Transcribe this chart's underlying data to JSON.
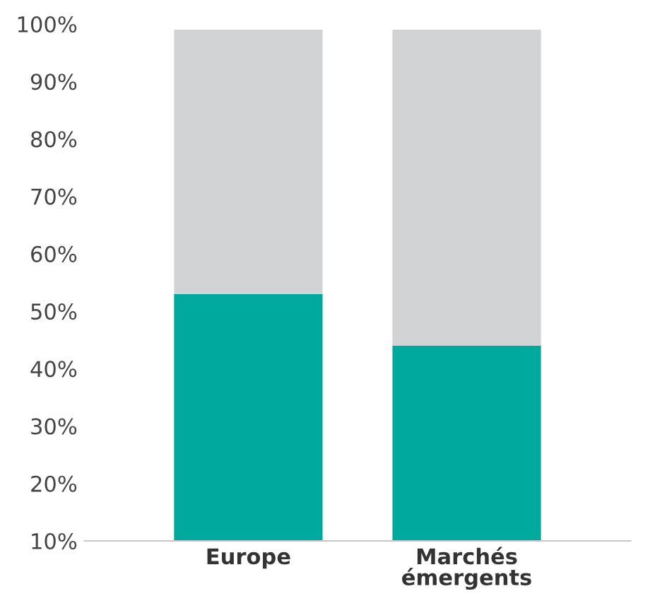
{
  "chart_data": {
    "type": "bar",
    "stacked": true,
    "categories": [
      "Europe",
      "Marchés\némergents"
    ],
    "series": [
      {
        "color": "#00a99d",
        "values": [
          53,
          44
        ]
      },
      {
        "color": "#d1d3d4",
        "values": [
          46,
          55
        ]
      }
    ],
    "ylim": [
      10,
      100
    ],
    "yticks": [
      {
        "value": 10,
        "label": "10%"
      },
      {
        "value": 20,
        "label": "20%"
      },
      {
        "value": 30,
        "label": "30%"
      },
      {
        "value": 40,
        "label": "40%"
      },
      {
        "value": 50,
        "label": "50%"
      },
      {
        "value": 60,
        "label": "60%"
      },
      {
        "value": 70,
        "label": "70%"
      },
      {
        "value": 80,
        "label": "80%"
      },
      {
        "value": 90,
        "label": "90%"
      },
      {
        "value": 100,
        "label": "100%"
      }
    ],
    "grid": false,
    "legend": false
  }
}
